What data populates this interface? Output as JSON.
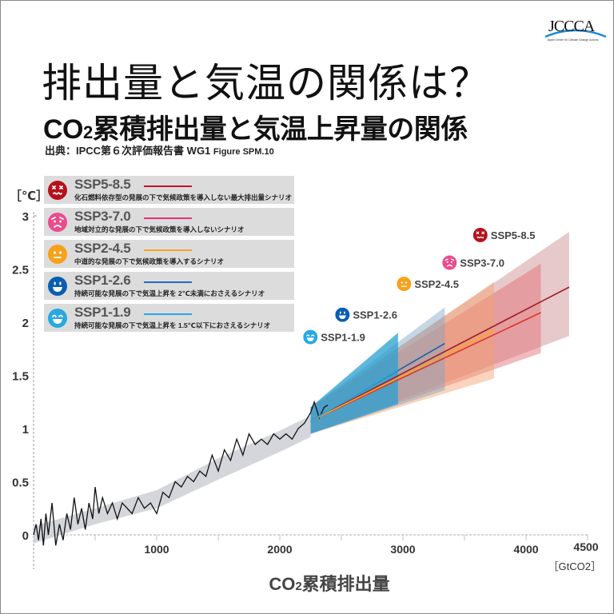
{
  "logo": {
    "text": "JCCCA",
    "subtitle": "Japan Center for Climate Change Actions"
  },
  "title": "排出量と気温の関係は？",
  "subtitle": {
    "prefix": "CO",
    "sub": "2",
    "rest": "累積排出量と気温上昇量の関係"
  },
  "source": {
    "text": "出典：IPCC第６次評価報告書 WG1",
    "figure": "Figure SPM.10"
  },
  "legend": [
    {
      "name": "SSP5-8.5",
      "desc": "化石燃料依存型の発展の下で気候政策を導入しない最大排出量シナリオ",
      "color": "#c8102e",
      "icon": "dead-face-icon",
      "iconColor": "#b5121b"
    },
    {
      "name": "SSP3-7.0",
      "desc": "地域対立的な発展の下で気候政策を導入しないシナリオ",
      "color": "#e8307a",
      "icon": "worried-face-icon",
      "iconColor": "#ea4c8e"
    },
    {
      "name": "SSP2-4.5",
      "desc": "中道的な発展の下で気候政策を導入するシナリオ",
      "color": "#f5a623",
      "icon": "neutral-face-icon",
      "iconColor": "#f7a21b"
    },
    {
      "name": "SSP1-2.6",
      "desc": "持続可能な発展の下で気温上昇を 2℃未満におさえるシナリオ",
      "color": "#1f6fb5",
      "icon": "smile-face-icon",
      "iconColor": "#0a5db1"
    },
    {
      "name": "SSP1-1.9",
      "desc": "持続可能な発展の下で気温上昇を 1.5℃以下におさえるシナリオ",
      "color": "#2aa7e0",
      "icon": "grin-face-icon",
      "iconColor": "#27a9e1"
    }
  ],
  "chart_data": {
    "type": "line",
    "xlabel": {
      "prefix": "CO",
      "sub": "2",
      "rest": "累積排出量"
    },
    "xunit": "［GtCO2］",
    "yunit": "［℃］",
    "xlim": [
      0,
      4500
    ],
    "ylim": [
      0,
      3
    ],
    "xticks": [
      1000,
      2000,
      3000,
      4000,
      4500
    ],
    "xtick_labels": [
      "1000",
      "2000",
      "3000",
      "4000",
      "4500"
    ],
    "yticks": [
      0,
      0.5,
      1,
      1.5,
      2,
      2.5,
      3
    ],
    "ytick_labels": [
      "0",
      "0.5",
      "1",
      "1.5",
      "2",
      "2.5",
      "3"
    ],
    "observed": {
      "color": "#111111",
      "x": [
        0,
        20,
        40,
        60,
        80,
        100,
        120,
        150,
        180,
        210,
        240,
        270,
        300,
        330,
        360,
        390,
        420,
        450,
        480,
        500,
        530,
        560,
        600,
        640,
        680,
        720,
        760,
        800,
        850,
        900,
        950,
        1000,
        1050,
        1100,
        1150,
        1200,
        1250,
        1300,
        1350,
        1400,
        1450,
        1500,
        1550,
        1600,
        1650,
        1700,
        1750,
        1800,
        1850,
        1900,
        1950,
        2000,
        2050,
        2100,
        2150,
        2200,
        2250,
        2280,
        2320,
        2360,
        2390
      ],
      "y": [
        0,
        0.1,
        -0.05,
        0.15,
        -0.1,
        0.2,
        0.0,
        0.3,
        -0.1,
        0.1,
        -0.05,
        0.2,
        0.05,
        0.35,
        0.1,
        0.25,
        0.05,
        0.3,
        0.15,
        0.45,
        0.2,
        0.35,
        0.2,
        0.3,
        0.15,
        0.3,
        0.25,
        0.2,
        0.35,
        0.25,
        0.3,
        0.2,
        0.4,
        0.35,
        0.5,
        0.45,
        0.55,
        0.5,
        0.6,
        0.55,
        0.75,
        0.6,
        0.8,
        0.7,
        0.9,
        0.75,
        0.95,
        0.85,
        0.9,
        0.85,
        0.95,
        0.9,
        0.95,
        0.9,
        1.0,
        1.05,
        1.15,
        1.25,
        1.1,
        1.2,
        1.22
      ]
    },
    "observed_range": {
      "color": "#c9ccd3",
      "x": [
        0,
        500,
        1000,
        1500,
        2000,
        2250
      ],
      "lower": [
        -0.08,
        0.1,
        0.25,
        0.52,
        0.78,
        0.92
      ],
      "upper": [
        0.08,
        0.25,
        0.42,
        0.72,
        0.98,
        1.12
      ]
    },
    "series": [
      {
        "name": "SSP5-8.5",
        "color": "#a11d24",
        "fill": "#c9878c",
        "x": [
          2250,
          4350
        ],
        "median": [
          1.07,
          2.33
        ],
        "lower": [
          0.95,
          1.87
        ],
        "upper": [
          1.2,
          2.85
        ]
      },
      {
        "name": "SSP3-7.0",
        "color": "#e0342b",
        "fill": "#e0686d",
        "x": [
          2250,
          4120
        ],
        "median": [
          1.07,
          2.09
        ],
        "lower": [
          0.95,
          1.71
        ],
        "upper": [
          1.2,
          2.55
        ]
      },
      {
        "name": "SSP2-4.5",
        "color": "#f5a623",
        "fill": "#f5a06a",
        "x": [
          2250,
          3740
        ],
        "median": [
          1.07,
          1.92
        ],
        "lower": [
          0.95,
          1.47
        ],
        "upper": [
          1.2,
          2.38
        ]
      },
      {
        "name": "SSP1-2.6",
        "color": "#1f5fa8",
        "fill": "#7fa4c6",
        "x": [
          2250,
          3340
        ],
        "median": [
          1.07,
          1.8
        ],
        "lower": [
          0.95,
          1.36
        ],
        "upper": [
          1.2,
          2.14
        ]
      },
      {
        "name": "SSP1-1.9",
        "color": "#29a9e0",
        "fill": "#2a9fd0",
        "x": [
          2250,
          2960
        ],
        "median": [
          1.07,
          1.55
        ],
        "lower": [
          0.95,
          1.23
        ],
        "upper": [
          1.2,
          1.9
        ]
      }
    ],
    "labels": [
      {
        "name": "SSP5-8.5",
        "x": 3700,
        "y": 2.82
      },
      {
        "name": "SSP3-7.0",
        "x": 3450,
        "y": 2.56
      },
      {
        "name": "SSP2-4.5",
        "x": 3080,
        "y": 2.36
      },
      {
        "name": "SSP1-2.6",
        "x": 2580,
        "y": 2.07
      },
      {
        "name": "SSP1-1.9",
        "x": 2320,
        "y": 1.86
      }
    ],
    "grid": false,
    "legend_position": "top-left"
  }
}
